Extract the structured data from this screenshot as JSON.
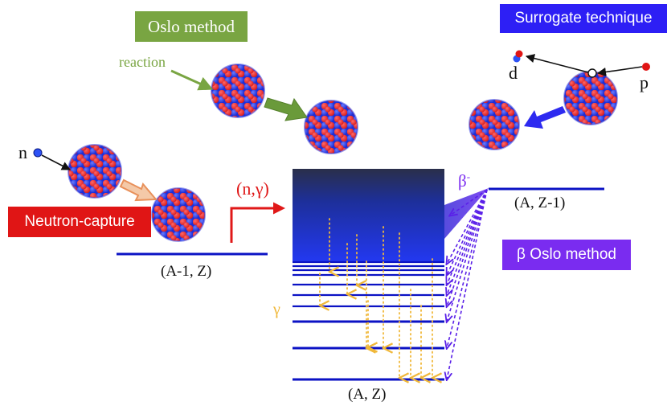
{
  "labels": {
    "oslo_method": "Oslo method",
    "surrogate_technique": "Surrogate technique",
    "neutron_capture": "Neutron-capture",
    "beta_oslo_method": "β Oslo method",
    "reaction": "reaction",
    "neutron": "n",
    "deuteron": "d",
    "proton": "p",
    "n_gamma": "(n,γ)",
    "beta_minus": "β",
    "beta_minus_sup": "-",
    "gamma": "γ",
    "level_a_minus_1_z": "(A-1, Z)",
    "level_a_z_minus_1": "(A, Z-1)",
    "level_a_z": "(A, Z)"
  },
  "colors": {
    "oslo_green": "#79a542",
    "surrogate_blue": "#2d1ff5",
    "neutron_red": "#e01515",
    "beta_purple": "#7a2cf0",
    "level_blue": "#0b12c4",
    "gamma_orange": "#f0b83a",
    "n_gamma_red": "#e01818"
  }
}
